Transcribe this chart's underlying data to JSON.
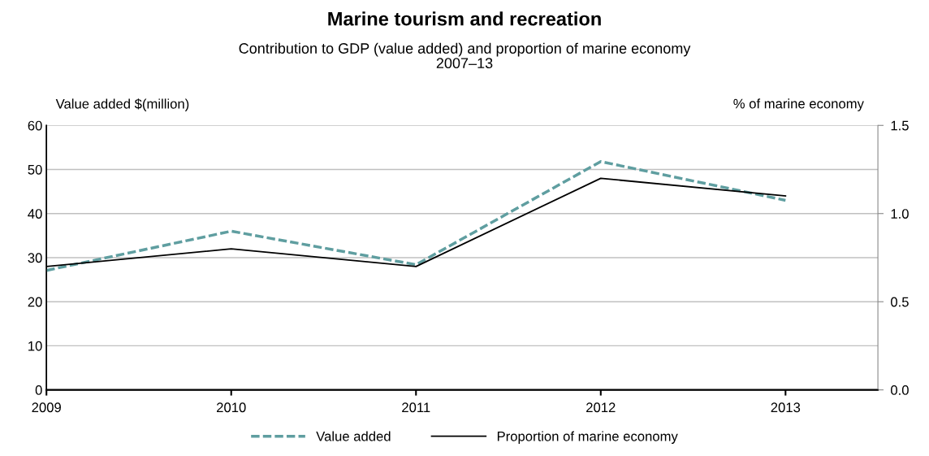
{
  "chart_data": {
    "type": "line",
    "title": "Marine tourism and recreation",
    "subtitle": "Contribution to GDP (value added) and proportion of marine economy\n2007–13",
    "ylabel": "Value added $(million)",
    "y2label": "% of marine economy",
    "categories": [
      "2009",
      "2010",
      "2011",
      "2012",
      "2013"
    ],
    "series": [
      {
        "name": "Value added",
        "color": "#5f9ea0",
        "line_style": "dashed",
        "values": [
          27.1,
          36,
          28.4,
          51.8,
          43
        ]
      },
      {
        "name": "Proportion of marine economy",
        "color": "#000000",
        "line_style": "solid",
        "axis": "y2",
        "values": [
          0.7,
          0.8,
          0.7,
          1.2,
          1.1
        ]
      }
    ],
    "ylim": [
      0,
      60
    ],
    "yticks": [
      0,
      10,
      20,
      30,
      40,
      50,
      60
    ],
    "y2lim": [
      0,
      1.5
    ],
    "y2ticks": [
      {
        "value": 0,
        "label": "0.0"
      },
      {
        "value": 0.5,
        "label": "0.5"
      },
      {
        "value": 1,
        "label": "1.0"
      },
      {
        "value": 1.5,
        "label": "1.5"
      }
    ],
    "grid": "y",
    "legend": "bottom",
    "marker": "none"
  }
}
